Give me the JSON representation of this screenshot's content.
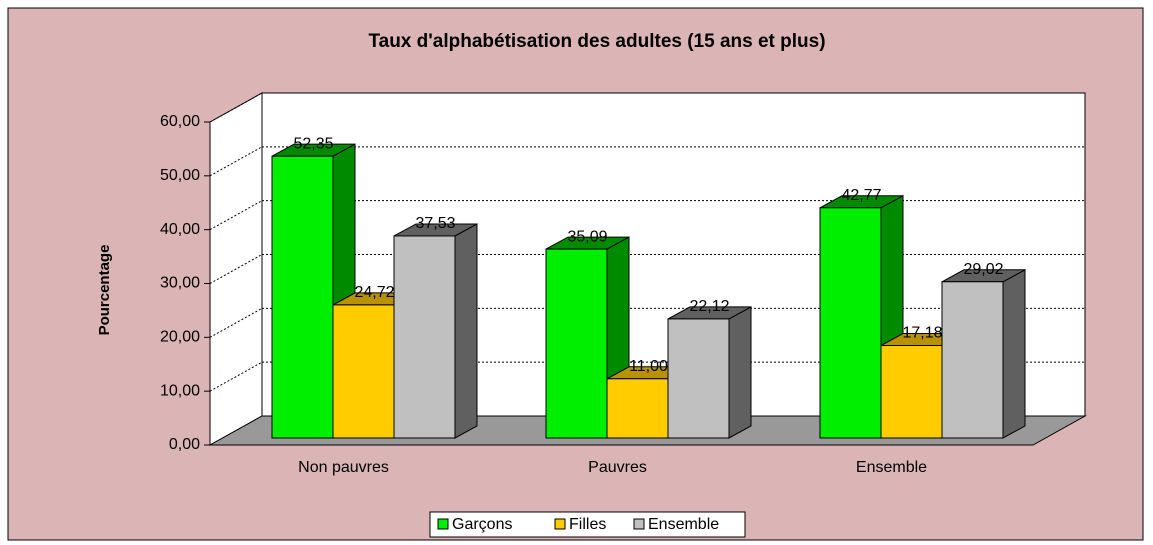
{
  "chart_data": {
    "type": "bar3d",
    "title": "Taux d'alphabétisation des adultes (15 ans et plus)",
    "y_label": "Pourcentage",
    "categories": [
      "Non pauvres",
      "Pauvres",
      "Ensemble"
    ],
    "series": [
      {
        "name": "Garçons",
        "color": "#00ee00",
        "side_color": "#008a00",
        "values": [
          52.35,
          35.09,
          42.77
        ],
        "value_labels": [
          "52,35",
          "35,09",
          "42,77"
        ]
      },
      {
        "name": "Filles",
        "color": "#ffcc00",
        "side_color": "#b89200",
        "values": [
          24.72,
          11.0,
          17.18
        ],
        "value_labels": [
          "24,72",
          "11,00",
          "17,18"
        ]
      },
      {
        "name": "Ensemble",
        "color": "#c0c0c0",
        "side_color": "#606060",
        "values": [
          37.53,
          22.12,
          29.02
        ],
        "value_labels": [
          "37,53",
          "22,12",
          "29,02"
        ]
      }
    ],
    "ylim": [
      0,
      60
    ],
    "yticks": [
      {
        "value": 0,
        "label": "0,00"
      },
      {
        "value": 10,
        "label": "10,00"
      },
      {
        "value": 20,
        "label": "20,00"
      },
      {
        "value": 30,
        "label": "30,00"
      },
      {
        "value": 40,
        "label": "40,00"
      },
      {
        "value": 50,
        "label": "50,00"
      },
      {
        "value": 60,
        "label": "60,00"
      }
    ],
    "grid": true,
    "legend": "bottom"
  }
}
